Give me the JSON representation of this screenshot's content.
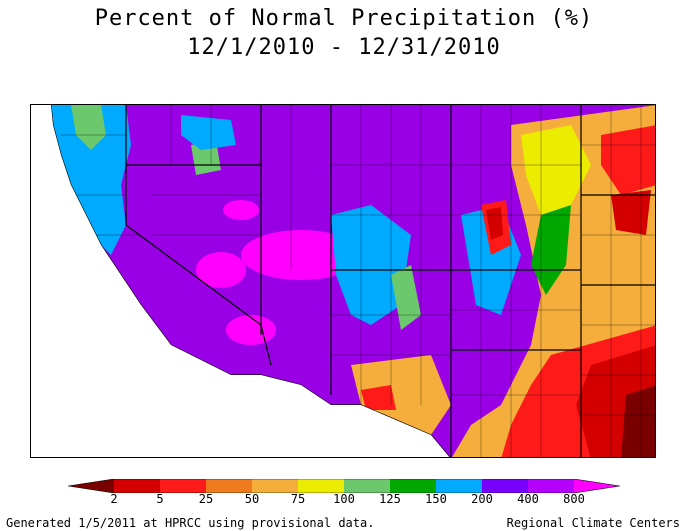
{
  "title": {
    "line1": "Percent of Normal Precipitation (%)",
    "line2": "12/1/2010 - 12/31/2010"
  },
  "legend": {
    "labels": [
      "2",
      "5",
      "25",
      "50",
      "75",
      "100",
      "125",
      "150",
      "200",
      "400",
      "800"
    ],
    "colors": [
      "#7a0000",
      "#d40000",
      "#ff1a1a",
      "#f07a1e",
      "#f5ae3c",
      "#ecec00",
      "#6cc86c",
      "#00a800",
      "#00aaff",
      "#7800ff",
      "#b400ff",
      "#ff00ff"
    ]
  },
  "footer": {
    "left": "Generated 1/5/2011 at HPRCC using provisional data.",
    "right": "Regional Climate Centers"
  }
}
